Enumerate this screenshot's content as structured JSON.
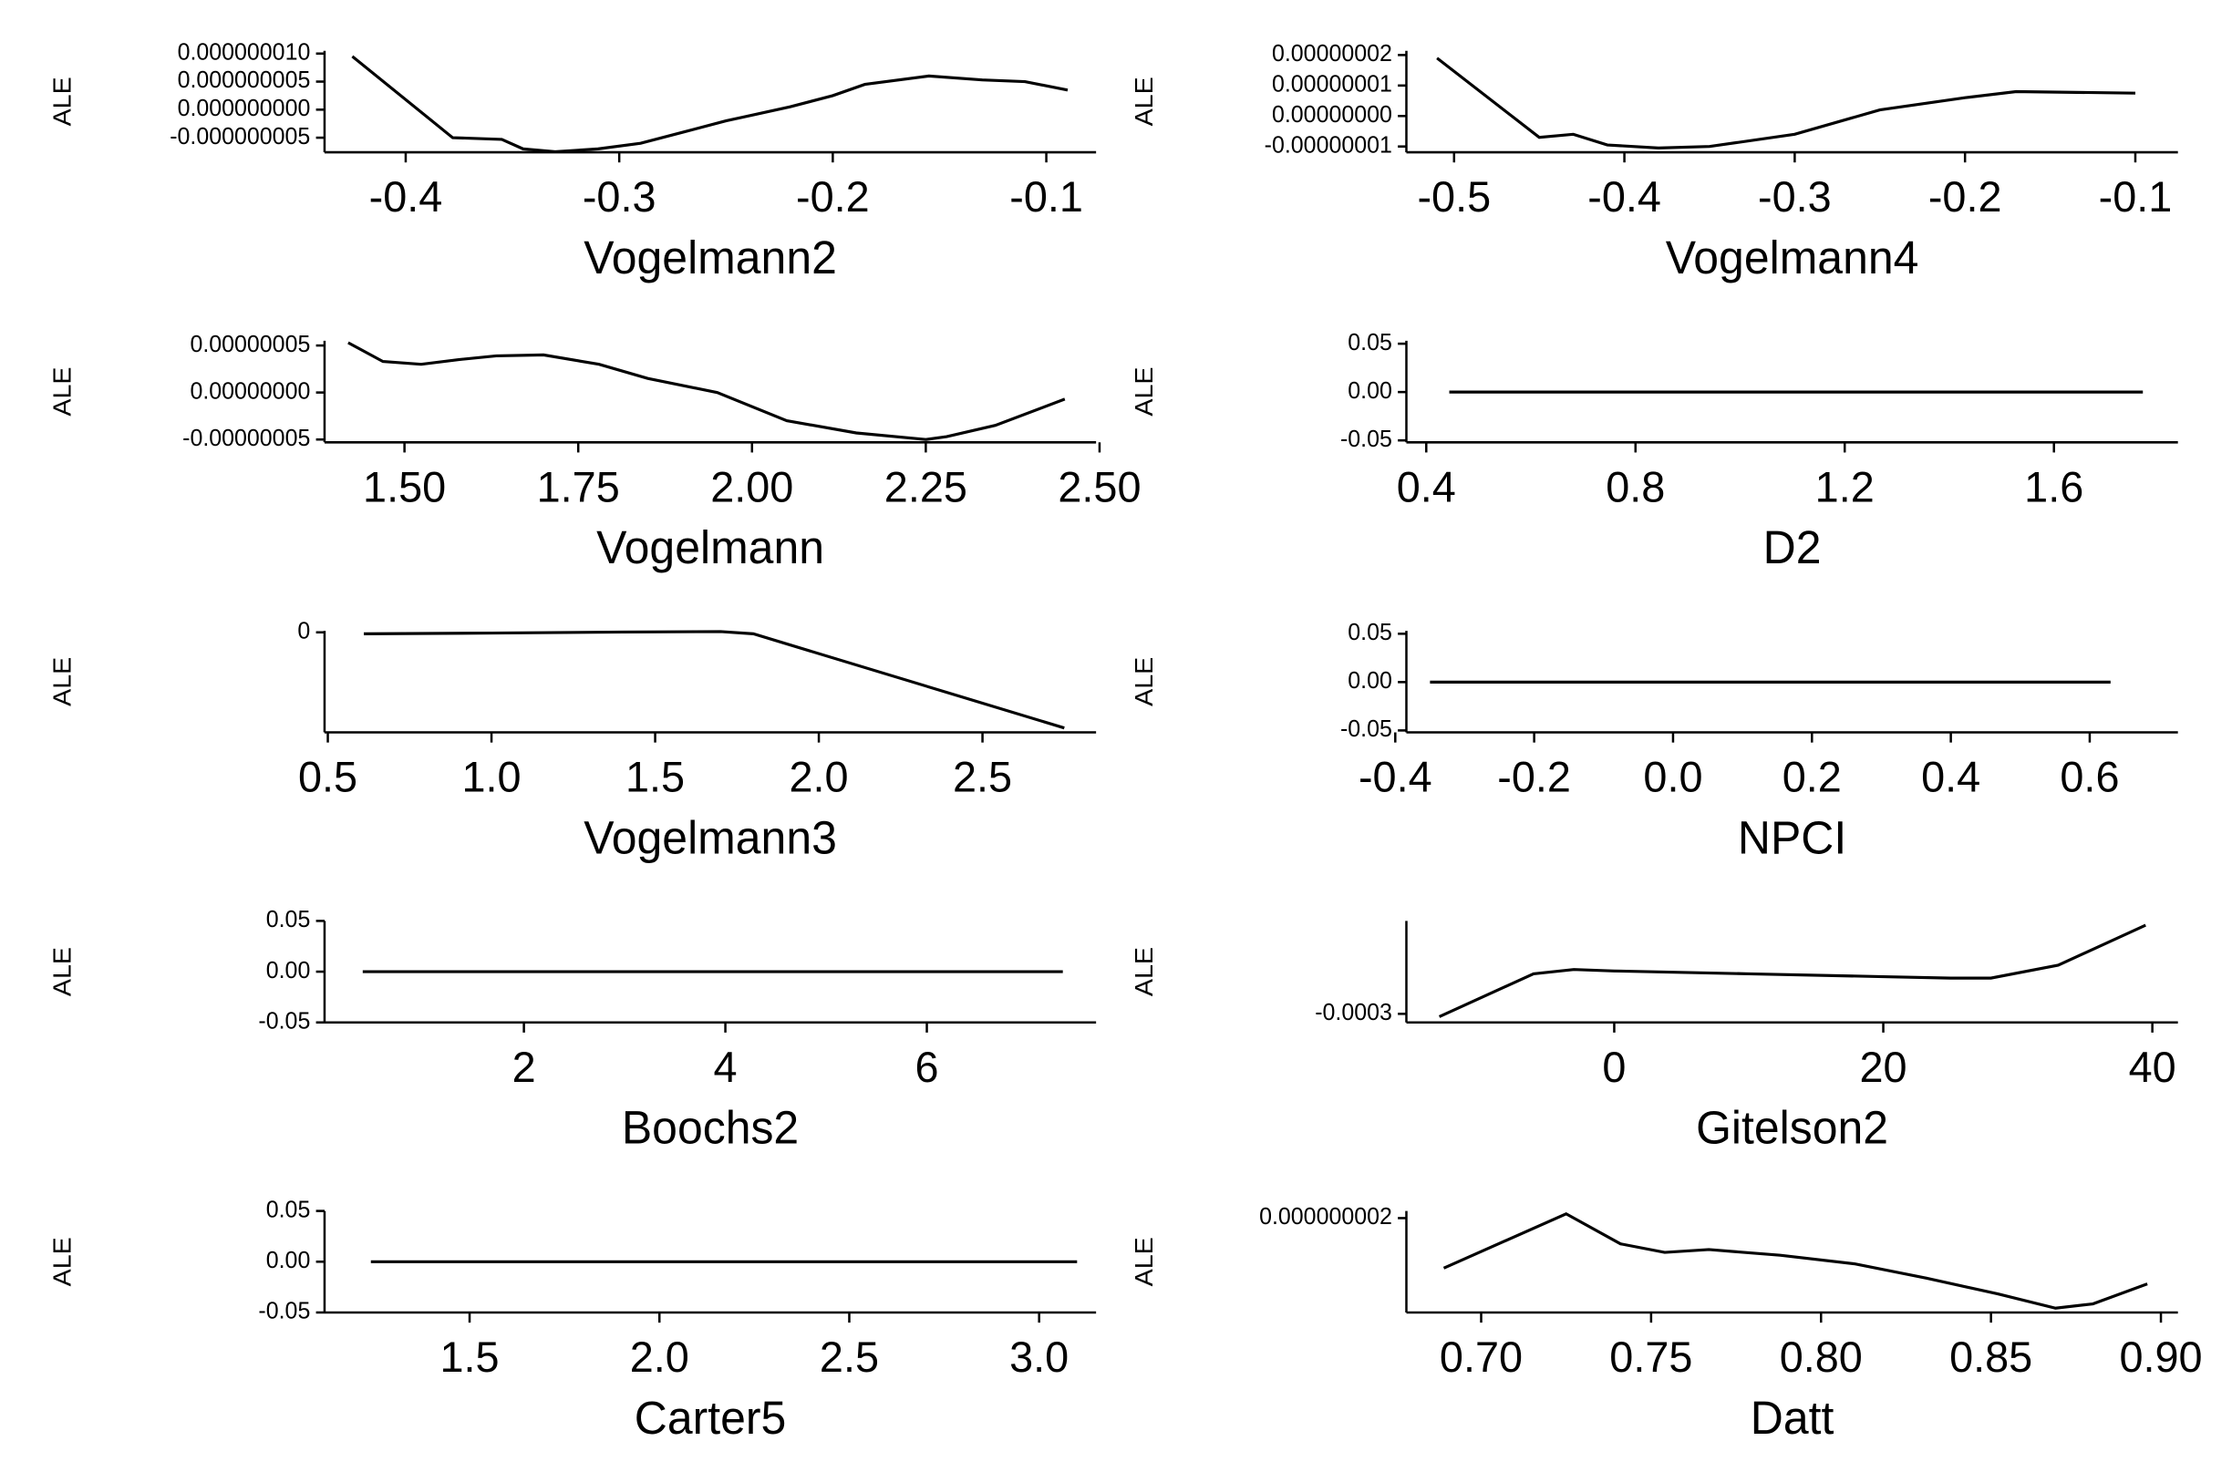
{
  "chart_data": [
    {
      "type": "line",
      "y_label": "ALE",
      "x_label": "Vogelmann2",
      "color": "#000000",
      "x": [
        -0.425,
        -0.378,
        -0.355,
        -0.345,
        -0.33,
        -0.31,
        -0.29,
        -0.27,
        -0.25,
        -0.22,
        -0.2,
        -0.185,
        -0.155,
        -0.13,
        -0.11,
        -0.09
      ],
      "values": [
        9.5e-09,
        -5e-09,
        -5.3e-09,
        -7e-09,
        -7.5e-09,
        -7e-09,
        -6e-09,
        -4e-09,
        -2e-09,
        5e-10,
        2.5e-09,
        4.5e-09,
        6e-09,
        5.3e-09,
        5e-09,
        3.5e-09
      ],
      "xlim": [
        -0.438,
        -0.0767
      ],
      "ylim": [
        -7.6e-09,
        1.05e-08
      ],
      "xticks": [
        -0.4,
        -0.3,
        -0.2,
        -0.1
      ],
      "yticks": [
        {
          "value": 1e-08,
          "label": "0.000000010"
        },
        {
          "value": 5e-09,
          "label": "0.000000005"
        },
        {
          "value": 0,
          "label": "0.000000000"
        },
        {
          "value": -5e-09,
          "label": "-0.000000005"
        }
      ]
    },
    {
      "type": "line",
      "y_label": "ALE",
      "x_label": "Vogelmann4",
      "color": "#000000",
      "x": [
        -0.51,
        -0.45,
        -0.43,
        -0.41,
        -0.38,
        -0.35,
        -0.3,
        -0.25,
        -0.2,
        -0.17,
        -0.1
      ],
      "values": [
        1.9e-08,
        -7e-09,
        -6e-09,
        -9.5e-09,
        -1.05e-08,
        -1e-08,
        -6e-09,
        2e-09,
        6e-09,
        8e-09,
        7.5e-09
      ],
      "xlim": [
        -0.528,
        -0.075
      ],
      "ylim": [
        -1.19e-08,
        2.14e-08
      ],
      "xticks": [
        -0.5,
        -0.4,
        -0.3,
        -0.2,
        -0.1
      ],
      "yticks": [
        {
          "value": 2e-08,
          "label": "0.00000002"
        },
        {
          "value": 1e-08,
          "label": "0.00000001"
        },
        {
          "value": 0,
          "label": "0.00000000"
        },
        {
          "value": -1e-08,
          "label": "-0.00000001"
        }
      ]
    },
    {
      "type": "line",
      "y_label": "ALE",
      "x_label": "Vogelmann",
      "color": "#000000",
      "x": [
        1.419,
        1.469,
        1.524,
        1.578,
        1.632,
        1.7,
        1.78,
        1.85,
        1.95,
        2.05,
        2.15,
        2.25,
        2.28,
        2.35,
        2.45
      ],
      "values": [
        5.3e-08,
        3.3e-08,
        3e-08,
        3.5e-08,
        3.9e-08,
        4e-08,
        3e-08,
        1.5e-08,
        0,
        -3e-08,
        -4.3e-08,
        -5e-08,
        -4.7e-08,
        -3.5e-08,
        -7e-09
      ],
      "xlim": [
        1.385,
        2.495
      ],
      "ylim": [
        -5.3e-08,
        5.5e-08
      ],
      "xticks": [
        {
          "value": 1.5,
          "label": "1.50"
        },
        1.75,
        {
          "value": 2,
          "label": "2.00"
        },
        2.25,
        {
          "value": 2.5,
          "label": "2.50"
        }
      ],
      "yticks": [
        {
          "value": 5e-08,
          "label": "0.00000005"
        },
        {
          "value": 0,
          "label": "0.00000000"
        },
        {
          "value": -5e-08,
          "label": "-0.00000005"
        }
      ]
    },
    {
      "type": "line",
      "y_label": "ALE",
      "x_label": "D2",
      "color": "#000000",
      "x": [
        0.444,
        1.77
      ],
      "values": [
        0,
        0
      ],
      "xlim": [
        0.362,
        1.837
      ],
      "ylim": [
        -0.052,
        0.053
      ],
      "xticks": [
        0.4,
        0.8,
        1.2,
        1.6
      ],
      "yticks": [
        0.05,
        {
          "value": 0,
          "label": "0.00"
        },
        -0.05
      ]
    },
    {
      "type": "line",
      "y_label": "ALE",
      "x_label": "Vogelmann3",
      "color": "#000000",
      "x": [
        0.61,
        1.0,
        1.4,
        1.7,
        1.8,
        2.75
      ],
      "values": [
        -1e-10,
        -5e-11,
        2e-11,
        5e-11,
        -1e-10,
        -6.5e-09
      ],
      "xlim": [
        0.49,
        2.847
      ],
      "ylim": [
        -6.8e-09,
        1e-10
      ],
      "xticks": [
        0.5,
        {
          "value": 1,
          "label": "1.0"
        },
        1.5,
        {
          "value": 2,
          "label": "2.0"
        },
        2.5
      ],
      "yticks": [
        0
      ]
    },
    {
      "type": "line",
      "y_label": "ALE",
      "x_label": "NPCI",
      "color": "#000000",
      "x": [
        -0.35,
        0.63
      ],
      "values": [
        0,
        0
      ],
      "xlim": [
        -0.384,
        0.727
      ],
      "ylim": [
        -0.052,
        0.053
      ],
      "xticks": [
        -0.4,
        -0.2,
        {
          "value": 0,
          "label": "0.0"
        },
        0.2,
        0.4,
        0.6
      ],
      "yticks": [
        0.05,
        {
          "value": 0,
          "label": "0.00"
        },
        -0.05
      ]
    },
    {
      "type": "line",
      "y_label": "ALE",
      "x_label": "Boochs2",
      "color": "#000000",
      "x": [
        0.4,
        7.35
      ],
      "values": [
        0,
        0
      ],
      "xlim": [
        0.021,
        7.68
      ],
      "ylim": [
        -0.05,
        0.05
      ],
      "xticks": [
        2,
        4,
        6
      ],
      "yticks": [
        0.05,
        {
          "value": 0,
          "label": "0.00"
        },
        -0.05
      ]
    },
    {
      "type": "line",
      "y_label": "ALE",
      "x_label": "Gitelson2",
      "color": "#000000",
      "x": [
        -13,
        -6,
        -3,
        0,
        10,
        20,
        25,
        28,
        33,
        39.5
      ],
      "values": [
        -0.000302,
        -0.000272,
        -0.000269,
        -0.00027,
        -0.000272,
        -0.000274,
        -0.000275,
        -0.000275,
        -0.000266,
        -0.000238
      ],
      "xlim": [
        -15.45,
        41.9
      ],
      "ylim": [
        -0.000306,
        -0.000235
      ],
      "xticks": [
        0,
        20,
        40
      ],
      "yticks": [
        -0.0003
      ]
    },
    {
      "type": "line",
      "y_label": "ALE",
      "x_label": "Carter5",
      "color": "#000000",
      "x": [
        1.24,
        3.1
      ],
      "values": [
        0,
        0
      ],
      "xlim": [
        1.118,
        3.15
      ],
      "ylim": [
        -0.05,
        0.05
      ],
      "xticks": [
        1.5,
        {
          "value": 2,
          "label": "2.0"
        },
        2.5,
        {
          "value": 3,
          "label": "3.0"
        }
      ],
      "yticks": [
        0.05,
        {
          "value": 0,
          "label": "0.00"
        },
        -0.05
      ]
    },
    {
      "type": "line",
      "y_label": "ALE",
      "x_label": "Datt",
      "color": "#000000",
      "x": [
        0.689,
        0.725,
        0.741,
        0.754,
        0.767,
        0.788,
        0.81,
        0.831,
        0.852,
        0.869,
        0.88,
        0.896
      ],
      "values": [
        9.5e-10,
        2.09e-09,
        1.46e-09,
        1.28e-09,
        1.34e-09,
        1.22e-09,
        1.04e-09,
        7.4e-10,
        4.1e-10,
        1.1e-10,
        2e-10,
        6.2e-10
      ],
      "xlim": [
        0.678,
        0.905
      ],
      "ylim": [
        2e-11,
        2.15e-09
      ],
      "xticks": [
        {
          "value": 0.7,
          "label": "0.70"
        },
        0.75,
        {
          "value": 0.8,
          "label": "0.80"
        },
        0.85,
        {
          "value": 0.9,
          "label": "0.90"
        }
      ],
      "yticks": [
        {
          "value": 2e-09,
          "label": "0.000000002"
        }
      ]
    }
  ]
}
